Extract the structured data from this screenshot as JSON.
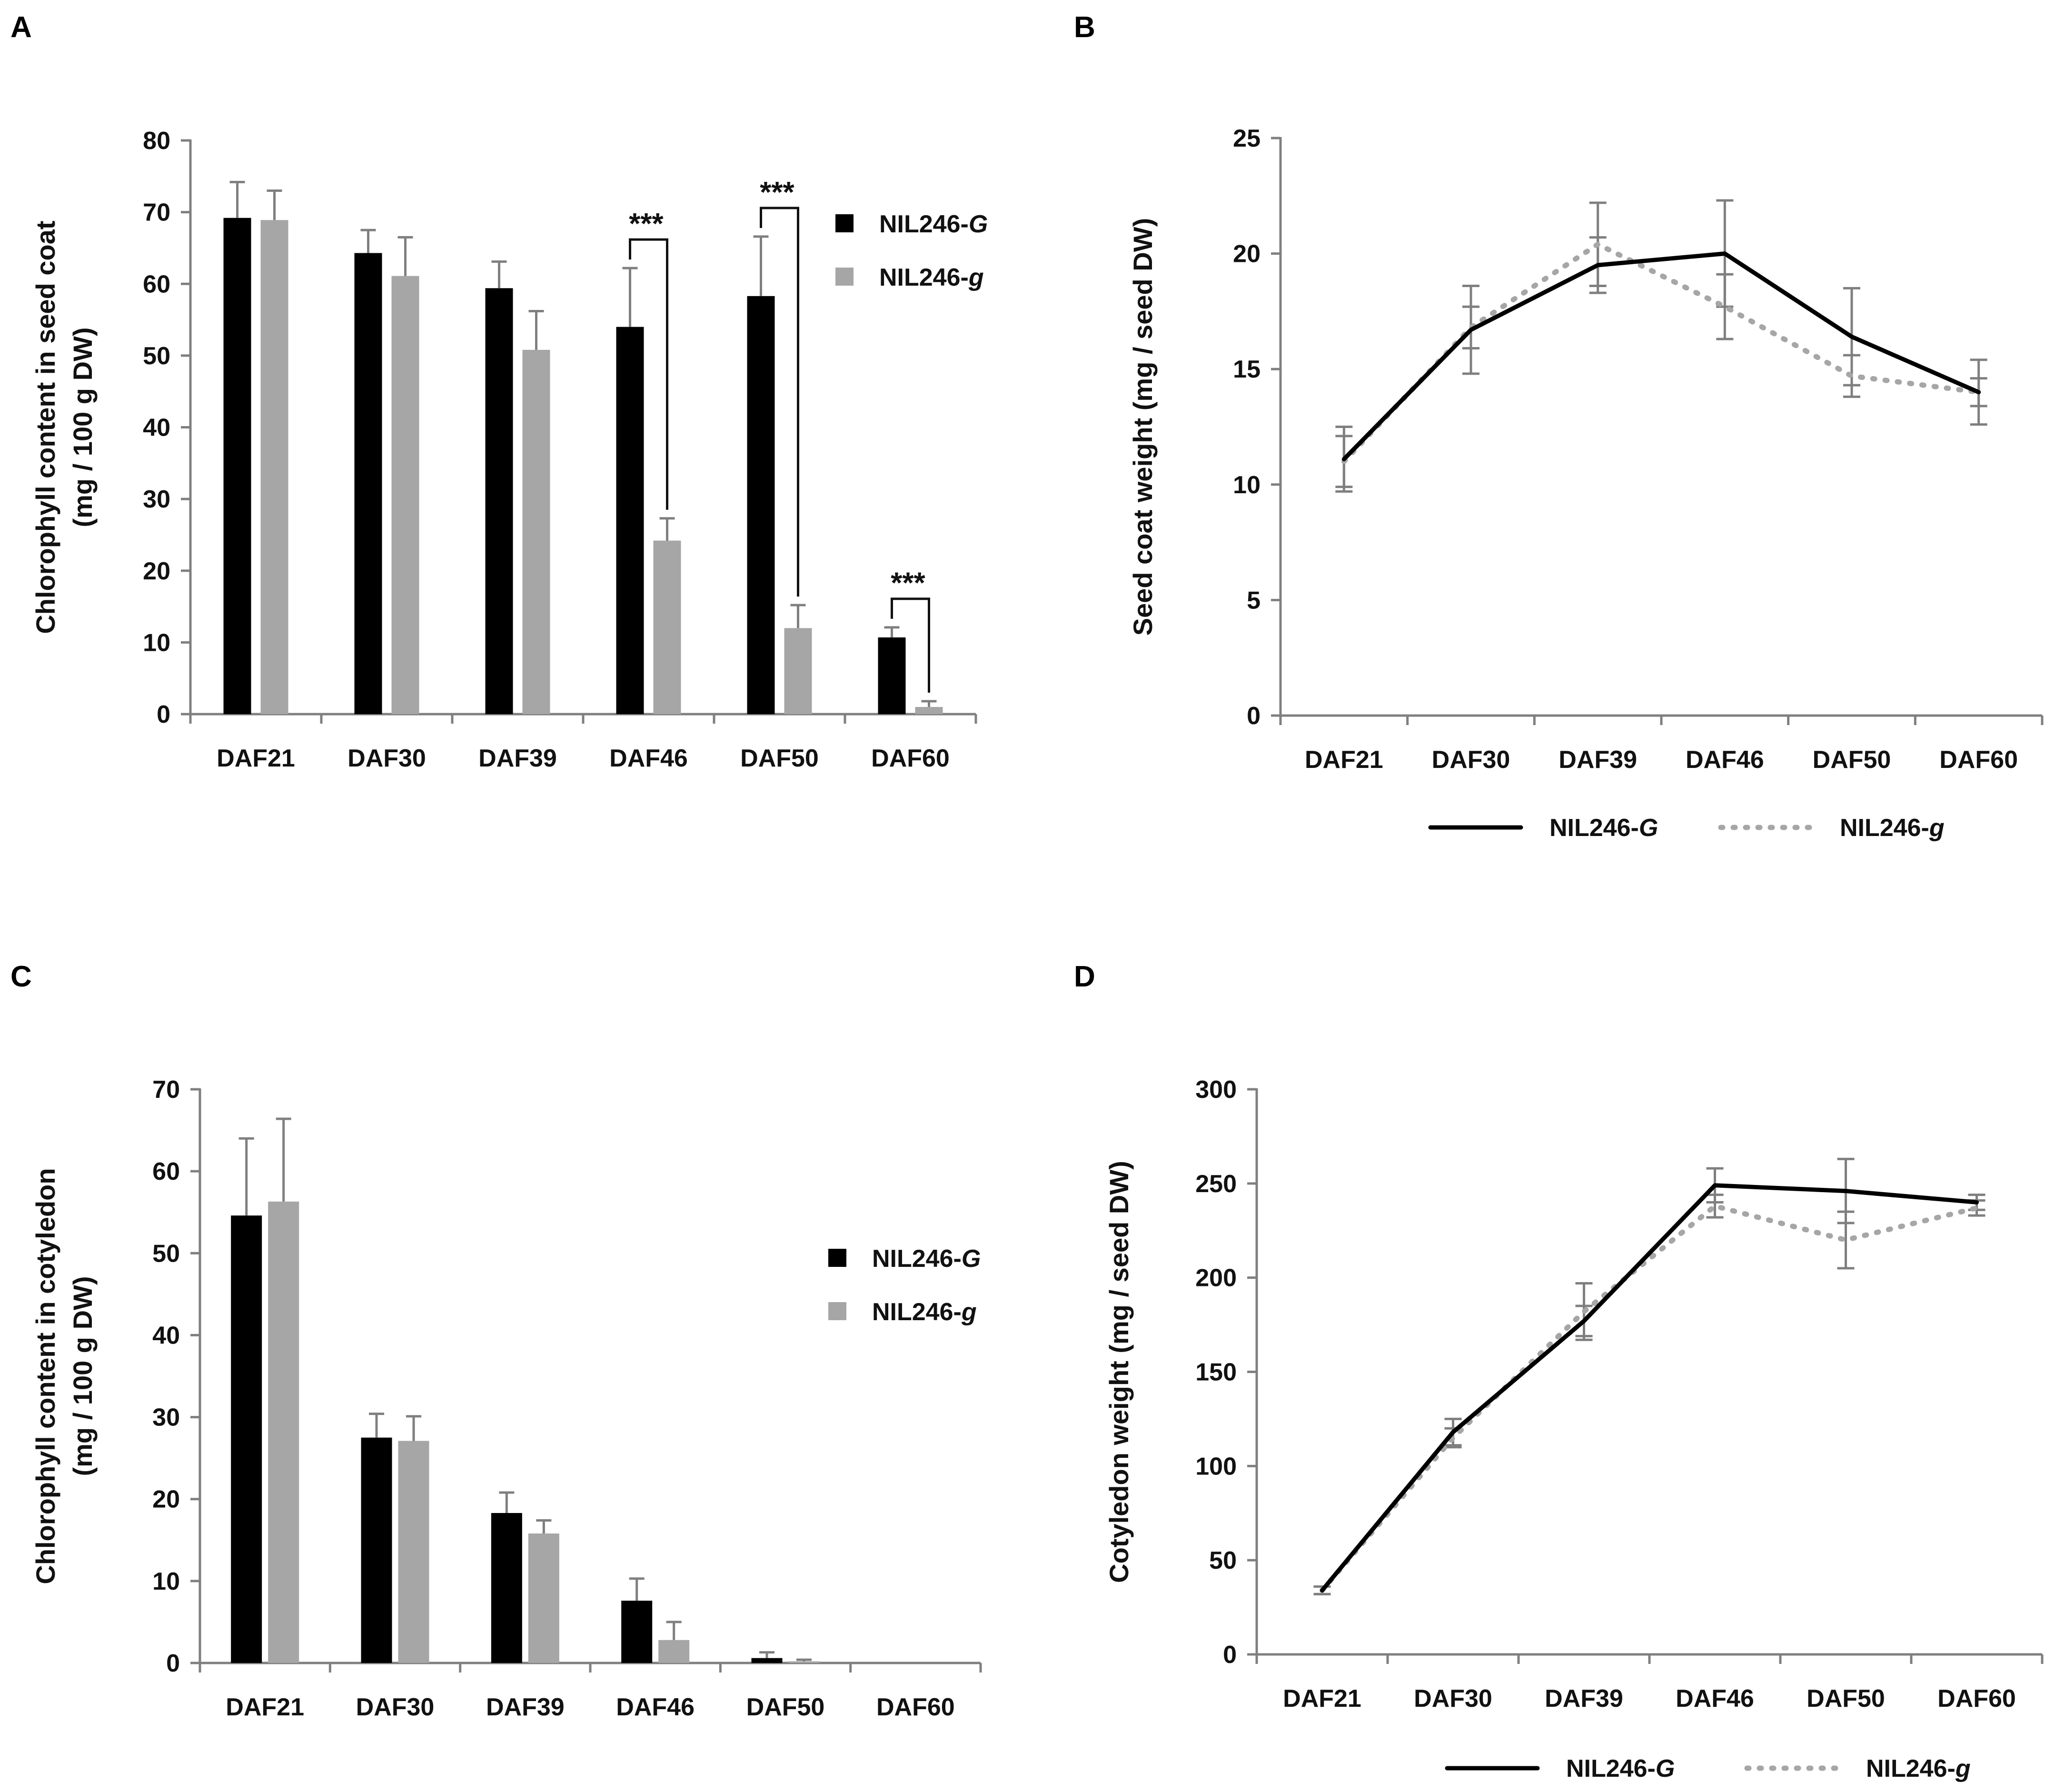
{
  "colors": {
    "G": "#000000",
    "g_bar": "#a6a6a6",
    "g_line": "#a6a6a6",
    "error": "#7f7f7f",
    "axis": "#7f7f7f"
  },
  "chart_data": [
    {
      "panel": "A",
      "type": "bar",
      "title": "",
      "ylabel_line1": "Chlorophyll content in seed coat",
      "ylabel_line2": "(mg / 100 g DW)",
      "ylim": [
        0,
        80
      ],
      "yticks": [
        0,
        10,
        20,
        30,
        40,
        50,
        60,
        70,
        80
      ],
      "categories": [
        "DAF21",
        "DAF30",
        "DAF39",
        "DAF46",
        "DAF50",
        "DAF60"
      ],
      "legend": {
        "prefix": "NIL246-",
        "G": "G",
        "g": "g"
      },
      "legend_position": "right",
      "series": [
        {
          "name": "NIL246-G",
          "values": [
            69.2,
            64.3,
            59.4,
            54.0,
            58.3,
            10.7
          ],
          "errors": [
            5.0,
            3.2,
            3.7,
            8.2,
            8.3,
            1.4
          ]
        },
        {
          "name": "NIL246-g",
          "values": [
            68.9,
            61.1,
            50.8,
            24.2,
            12.0,
            1.0
          ],
          "errors": [
            4.1,
            5.4,
            5.4,
            3.1,
            3.2,
            0.8
          ]
        }
      ],
      "significance": [
        {
          "category": "DAF46",
          "label": "***"
        },
        {
          "category": "DAF50",
          "label": "***"
        },
        {
          "category": "DAF60",
          "label": "***"
        }
      ]
    },
    {
      "panel": "B",
      "type": "line",
      "title": "",
      "ylabel": "Seed coat weight (mg / seed DW)",
      "ylim": [
        0,
        25
      ],
      "yticks": [
        0,
        5,
        10,
        15,
        20,
        25
      ],
      "categories": [
        "DAF21",
        "DAF30",
        "DAF39",
        "DAF46",
        "DAF50",
        "DAF60"
      ],
      "legend": {
        "prefix": "NIL246-",
        "G": "G",
        "g": "g"
      },
      "legend_position": "bottom",
      "series": [
        {
          "name": "NIL246-G",
          "values": [
            11.1,
            16.7,
            19.5,
            20.0,
            16.4,
            14.0
          ],
          "errors": [
            1.4,
            1.9,
            1.2,
            2.3,
            2.1,
            1.4
          ]
        },
        {
          "name": "NIL246-g",
          "values": [
            11.0,
            16.8,
            20.4,
            17.7,
            14.7,
            14.0
          ],
          "errors": [
            1.1,
            0.9,
            1.8,
            1.4,
            0.9,
            0.6
          ]
        }
      ]
    },
    {
      "panel": "C",
      "type": "bar",
      "title": "",
      "ylabel_line1": "Chlorophyll content in cotyledon",
      "ylabel_line2": "(mg / 100 g DW)",
      "ylim": [
        0,
        70
      ],
      "yticks": [
        0,
        10,
        20,
        30,
        40,
        50,
        60,
        70
      ],
      "categories": [
        "DAF21",
        "DAF30",
        "DAF39",
        "DAF46",
        "DAF50",
        "DAF60"
      ],
      "legend": {
        "prefix": "NIL246-",
        "G": "G",
        "g": "g"
      },
      "legend_position": "right",
      "series": [
        {
          "name": "NIL246-G",
          "values": [
            54.6,
            27.5,
            18.3,
            7.6,
            0.6,
            0.0
          ],
          "errors": [
            9.4,
            2.9,
            2.5,
            2.7,
            0.7,
            0.0
          ]
        },
        {
          "name": "NIL246-g",
          "values": [
            56.3,
            27.1,
            15.8,
            2.8,
            0.2,
            0.0
          ],
          "errors": [
            10.1,
            3.0,
            1.6,
            2.2,
            0.2,
            0.0
          ]
        }
      ]
    },
    {
      "panel": "D",
      "type": "line",
      "title": "",
      "ylabel": "Cotyledon weight (mg / seed DW)",
      "ylim": [
        0,
        300
      ],
      "yticks": [
        0,
        50,
        100,
        150,
        200,
        250,
        300
      ],
      "categories": [
        "DAF21",
        "DAF30",
        "DAF39",
        "DAF46",
        "DAF50",
        "DAF60"
      ],
      "legend": {
        "prefix": "NIL246-",
        "G": "G",
        "g": "g"
      },
      "legend_position": "bottom",
      "series": [
        {
          "name": "NIL246-G",
          "values": [
            34,
            118,
            177,
            249,
            246,
            240
          ],
          "errors": [
            2,
            7,
            8,
            9,
            17,
            4
          ]
        },
        {
          "name": "NIL246-g",
          "values": [
            34,
            115,
            182,
            238,
            220,
            237
          ],
          "errors": [
            2,
            5,
            15,
            6,
            15,
            4
          ]
        }
      ]
    }
  ]
}
